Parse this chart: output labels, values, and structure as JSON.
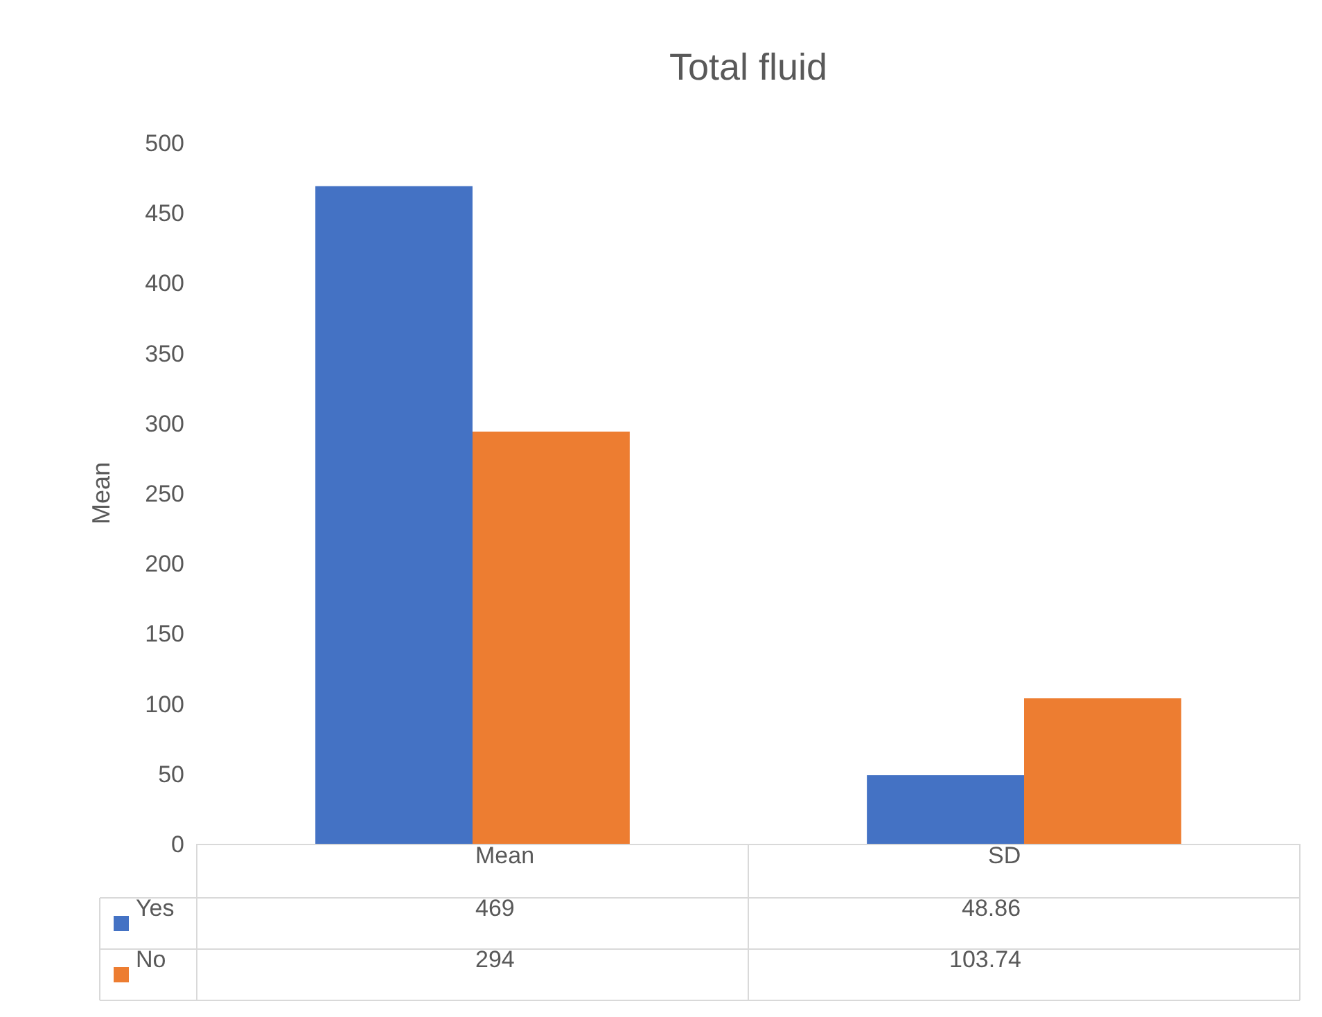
{
  "chart_data": {
    "type": "bar",
    "title": "Total fluid",
    "ylabel": "Mean",
    "categories": [
      "Mean",
      "SD"
    ],
    "series": [
      {
        "name": "Yes",
        "color": "#4472c4",
        "values": [
          469,
          48.86
        ],
        "value_labels": [
          "469",
          "48.86"
        ]
      },
      {
        "name": "No",
        "color": "#ed7d31",
        "values": [
          294,
          103.74
        ],
        "value_labels": [
          "294",
          "103.74"
        ]
      }
    ],
    "ylim": [
      0,
      500
    ],
    "yticks": [
      0,
      50,
      100,
      150,
      200,
      250,
      300,
      350,
      400,
      450,
      500
    ],
    "grid": false,
    "legend": "bottom"
  }
}
